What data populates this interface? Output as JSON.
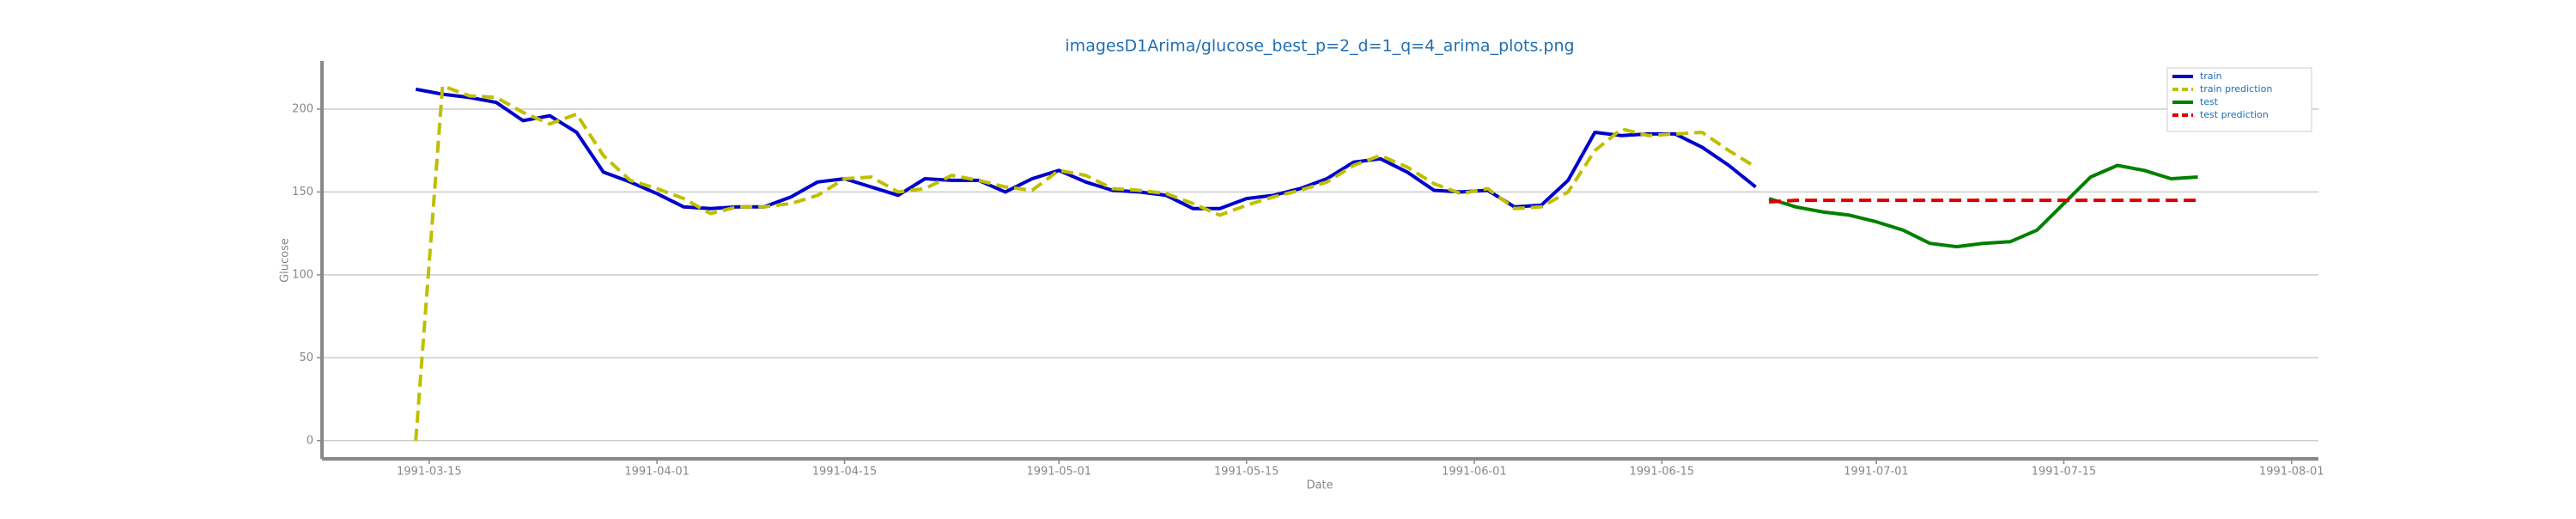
{
  "chart_data": {
    "type": "line",
    "title": "imagesD1Arima/glucose_best_p=2_d=1_q=4_arima_plots.png",
    "xlabel": "Date",
    "ylabel": "Glucose",
    "xlim": [
      "1991-03-07",
      "1991-08-03"
    ],
    "xticks": [
      "1991-03-15",
      "1991-04-01",
      "1991-04-15",
      "1991-05-01",
      "1991-05-15",
      "1991-06-01",
      "1991-06-15",
      "1991-07-01",
      "1991-07-15",
      "1991-08-01"
    ],
    "ylim": [
      -11,
      229
    ],
    "yticks": [
      0,
      50,
      100,
      150,
      200
    ],
    "grid": true,
    "legend": "upper right",
    "series": [
      {
        "name": "train",
        "color": "#0000cc",
        "dashed": false,
        "x": [
          "1991-03-14",
          "1991-03-16",
          "1991-03-18",
          "1991-03-20",
          "1991-03-22",
          "1991-03-24",
          "1991-03-26",
          "1991-03-28",
          "1991-03-30",
          "1991-04-01",
          "1991-04-03",
          "1991-04-05",
          "1991-04-07",
          "1991-04-09",
          "1991-04-11",
          "1991-04-13",
          "1991-04-15",
          "1991-04-17",
          "1991-04-19",
          "1991-04-21",
          "1991-04-23",
          "1991-04-25",
          "1991-04-27",
          "1991-04-29",
          "1991-05-01",
          "1991-05-03",
          "1991-05-05",
          "1991-05-07",
          "1991-05-09",
          "1991-05-11",
          "1991-05-13",
          "1991-05-15",
          "1991-05-17",
          "1991-05-19",
          "1991-05-21",
          "1991-05-23",
          "1991-05-25",
          "1991-05-27",
          "1991-05-29",
          "1991-05-31",
          "1991-06-02",
          "1991-06-04",
          "1991-06-06",
          "1991-06-08",
          "1991-06-10",
          "1991-06-12",
          "1991-06-14",
          "1991-06-16",
          "1991-06-18",
          "1991-06-20",
          "1991-06-22"
        ],
        "values": [
          212,
          209,
          207,
          204,
          193,
          196,
          186,
          162,
          156,
          149,
          141,
          140,
          141,
          141,
          147,
          156,
          158,
          153,
          148,
          158,
          157,
          157,
          150,
          158,
          163,
          156,
          151,
          150,
          148,
          140,
          140,
          146,
          148,
          152,
          158,
          168,
          170,
          162,
          151,
          150,
          151,
          141,
          142,
          157,
          186,
          184,
          185,
          185,
          177,
          166,
          153
        ]
      },
      {
        "name": "train prediction",
        "color": "#bfbf00",
        "dashed": true,
        "x": [
          "1991-03-14",
          "1991-03-16",
          "1991-03-18",
          "1991-03-20",
          "1991-03-22",
          "1991-03-24",
          "1991-03-26",
          "1991-03-28",
          "1991-03-30",
          "1991-04-01",
          "1991-04-03",
          "1991-04-05",
          "1991-04-07",
          "1991-04-09",
          "1991-04-11",
          "1991-04-13",
          "1991-04-15",
          "1991-04-17",
          "1991-04-19",
          "1991-04-21",
          "1991-04-23",
          "1991-04-25",
          "1991-04-27",
          "1991-04-29",
          "1991-05-01",
          "1991-05-03",
          "1991-05-05",
          "1991-05-07",
          "1991-05-09",
          "1991-05-11",
          "1991-05-13",
          "1991-05-15",
          "1991-05-17",
          "1991-05-19",
          "1991-05-21",
          "1991-05-23",
          "1991-05-25",
          "1991-05-27",
          "1991-05-29",
          "1991-05-31",
          "1991-06-02",
          "1991-06-04",
          "1991-06-06",
          "1991-06-08",
          "1991-06-10",
          "1991-06-12",
          "1991-06-14",
          "1991-06-16",
          "1991-06-18",
          "1991-06-20",
          "1991-06-22"
        ],
        "values": [
          0,
          214,
          208,
          207,
          198,
          191,
          197,
          172,
          157,
          152,
          146,
          137,
          141,
          141,
          143,
          148,
          158,
          159,
          150,
          152,
          160,
          157,
          153,
          151,
          163,
          160,
          152,
          151,
          149,
          143,
          136,
          142,
          147,
          151,
          156,
          166,
          172,
          165,
          155,
          149,
          152,
          140,
          141,
          150,
          175,
          188,
          184,
          185,
          186,
          175,
          165
        ]
      },
      {
        "name": "test",
        "color": "#008000",
        "dashed": false,
        "x": [
          "1991-06-23",
          "1991-06-25",
          "1991-06-27",
          "1991-06-29",
          "1991-07-01",
          "1991-07-03",
          "1991-07-05",
          "1991-07-07",
          "1991-07-09",
          "1991-07-11",
          "1991-07-13",
          "1991-07-15",
          "1991-07-17",
          "1991-07-19",
          "1991-07-21",
          "1991-07-23",
          "1991-07-25"
        ],
        "values": [
          146,
          141,
          138,
          136,
          132,
          127,
          119,
          117,
          119,
          120,
          127,
          143,
          159,
          166,
          163,
          158,
          159
        ]
      },
      {
        "name": "test prediction",
        "color": "#dd0000",
        "dashed": true,
        "x": [
          "1991-06-23",
          "1991-06-25",
          "1991-06-27",
          "1991-06-29",
          "1991-07-01",
          "1991-07-03",
          "1991-07-05",
          "1991-07-07",
          "1991-07-09",
          "1991-07-11",
          "1991-07-13",
          "1991-07-15",
          "1991-07-17",
          "1991-07-19",
          "1991-07-21",
          "1991-07-23",
          "1991-07-25"
        ],
        "values": [
          144,
          145,
          145,
          145,
          145,
          145,
          145,
          145,
          145,
          145,
          145,
          145,
          145,
          145,
          145,
          145,
          145
        ]
      }
    ]
  }
}
